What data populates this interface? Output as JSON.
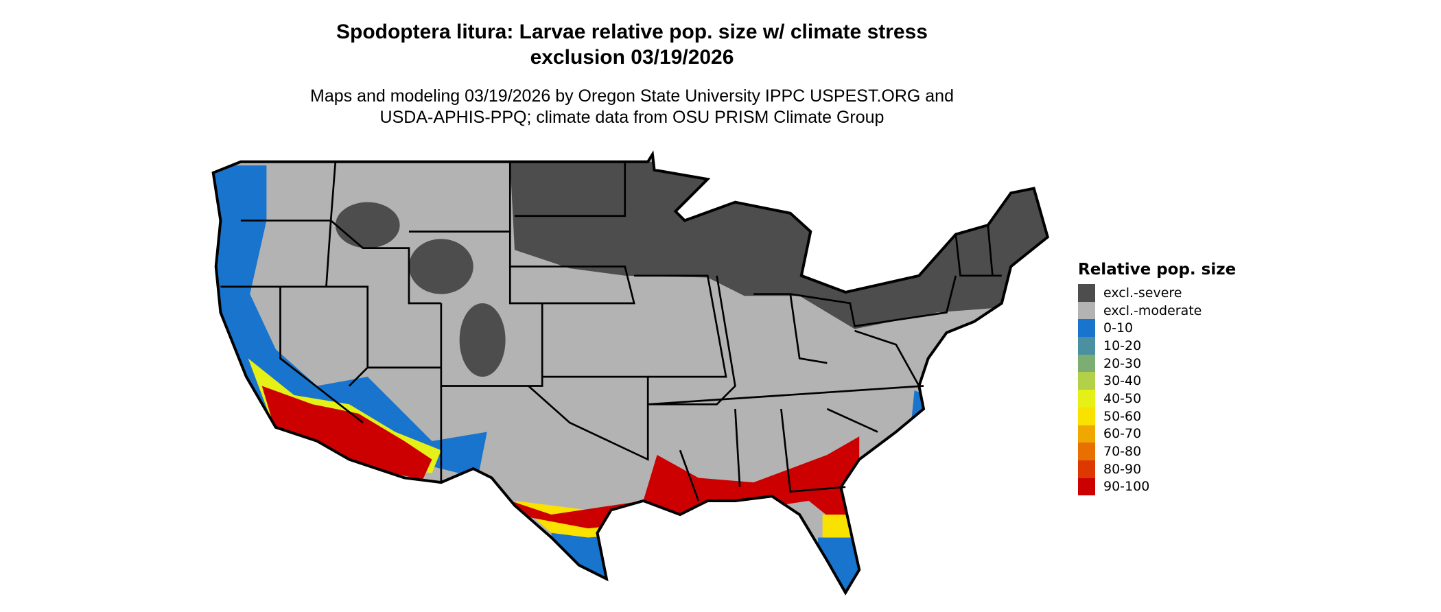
{
  "title": {
    "line1": "Spodoptera litura: Larvae relative pop. size w/ climate stress",
    "line2": "exclusion 03/19/2026"
  },
  "subtitle": {
    "line1": "Maps and modeling 03/19/2026 by Oregon State University IPPC USPEST.ORG and",
    "line2": "USDA-APHIS-PPQ; climate data from OSU PRISM Climate Group"
  },
  "map": {
    "region": "Contiguous United States",
    "boundaries": "state borders",
    "colors": {
      "excl_severe": "#4d4d4d",
      "excl_moderate": "#b3b3b3",
      "border": "#000000"
    }
  },
  "legend": {
    "title": "Relative pop. size",
    "items": [
      {
        "label": "excl.-severe",
        "color": "#4d4d4d"
      },
      {
        "label": "excl.-moderate",
        "color": "#b3b3b3"
      },
      {
        "label": "0-10",
        "color": "#1874cd"
      },
      {
        "label": "10-20",
        "color": "#4a90a0"
      },
      {
        "label": "20-30",
        "color": "#7cae74"
      },
      {
        "label": "30-40",
        "color": "#b2d148"
      },
      {
        "label": "40-50",
        "color": "#e5f016"
      },
      {
        "label": "50-60",
        "color": "#f9e100"
      },
      {
        "label": "60-70",
        "color": "#f0a800"
      },
      {
        "label": "70-80",
        "color": "#e87000"
      },
      {
        "label": "80-90",
        "color": "#dc3800"
      },
      {
        "label": "90-100",
        "color": "#cc0000"
      }
    ]
  }
}
